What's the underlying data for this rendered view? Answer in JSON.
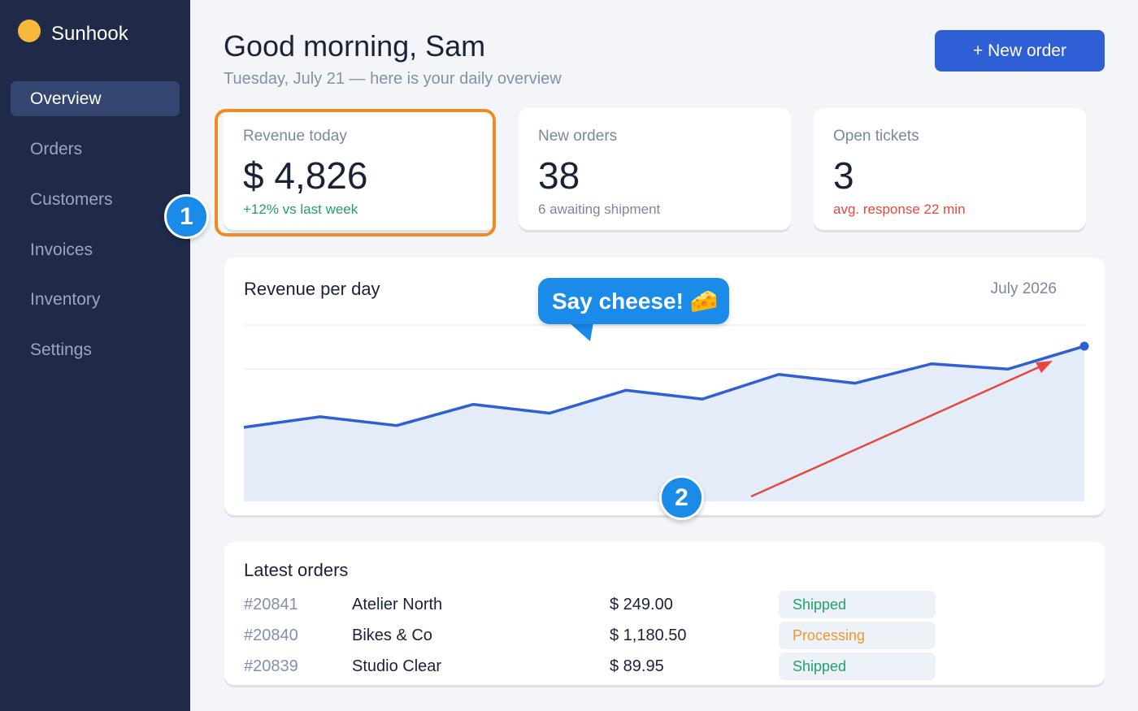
{
  "app": {
    "name": "Sunhook",
    "brand_color": "#f6b93b",
    "sidebar_bg": "#1e2a48",
    "accent": "#2f5fd4"
  },
  "sidebar": {
    "items": [
      {
        "label": "Overview",
        "active": true
      },
      {
        "label": "Orders",
        "active": false
      },
      {
        "label": "Customers",
        "active": false
      },
      {
        "label": "Invoices",
        "active": false
      },
      {
        "label": "Inventory",
        "active": false
      },
      {
        "label": "Settings",
        "active": false
      }
    ]
  },
  "header": {
    "title": "Good morning, Sam",
    "subtitle": "Tuesday, July 21 — here is your daily overview",
    "new_order_label": "+ New order"
  },
  "stats": [
    {
      "label": "Revenue today",
      "value": "$ 4,826",
      "note": "+12% vs last week",
      "note_tone": "positive"
    },
    {
      "label": "New orders",
      "value": "38",
      "note": "6 awaiting shipment",
      "note_tone": "neutral"
    },
    {
      "label": "Open tickets",
      "value": "3",
      "note": "avg. response 22 min",
      "note_tone": "negative"
    }
  ],
  "annotations": {
    "badge_1": "1",
    "badge_2": "2",
    "bubble_text": "Say cheese! 🧀",
    "highlight_color": "#f08a24",
    "arrow_color": "#e5483d",
    "badge_color": "#1a8be8"
  },
  "chart": {
    "title": "Revenue per day",
    "period": "July 2026",
    "line_color": "#2f5fd4",
    "fill_color": "#e4ecfa"
  },
  "chart_data": {
    "type": "area",
    "title": "Revenue per day",
    "series": [
      {
        "values": [
          0.42,
          0.48,
          0.43,
          0.55,
          0.5,
          0.63,
          0.58,
          0.72,
          0.67,
          0.78,
          0.75,
          0.88
        ]
      }
    ],
    "ylim": [
      0,
      1
    ],
    "grid": true,
    "grid_lines": 3
  },
  "orders": {
    "title": "Latest orders",
    "rows": [
      {
        "id": "#20841",
        "customer": "Atelier North",
        "amount": "$ 249.00",
        "status": "Shipped",
        "status_tone": "positive"
      },
      {
        "id": "#20840",
        "customer": "Bikes & Co",
        "amount": "$ 1,180.50",
        "status": "Processing",
        "status_tone": "warning"
      },
      {
        "id": "#20839",
        "customer": "Studio Clear",
        "amount": "$ 89.95",
        "status": "Shipped",
        "status_tone": "positive"
      }
    ]
  }
}
